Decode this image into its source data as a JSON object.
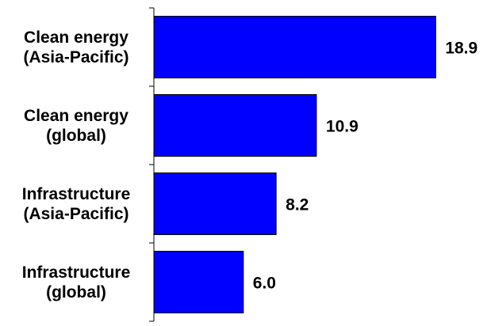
{
  "chart_data": {
    "type": "bar",
    "orientation": "horizontal",
    "categories": [
      [
        "Clean energy",
        "(Asia-Pacific)"
      ],
      [
        "Clean energy",
        "(global)"
      ],
      [
        "Infrastructure",
        "(Asia-Pacific)"
      ],
      [
        "Infrastructure",
        "(global)"
      ]
    ],
    "values": [
      18.9,
      10.9,
      8.2,
      6.0
    ],
    "value_labels": [
      "18.9",
      "10.9",
      "8.2",
      "6.0"
    ],
    "xlim": [
      0,
      20
    ],
    "grid": false,
    "legend": "none",
    "colors": {
      "bar": "#0000ff",
      "text": "#000000",
      "axis": "#000000"
    }
  }
}
